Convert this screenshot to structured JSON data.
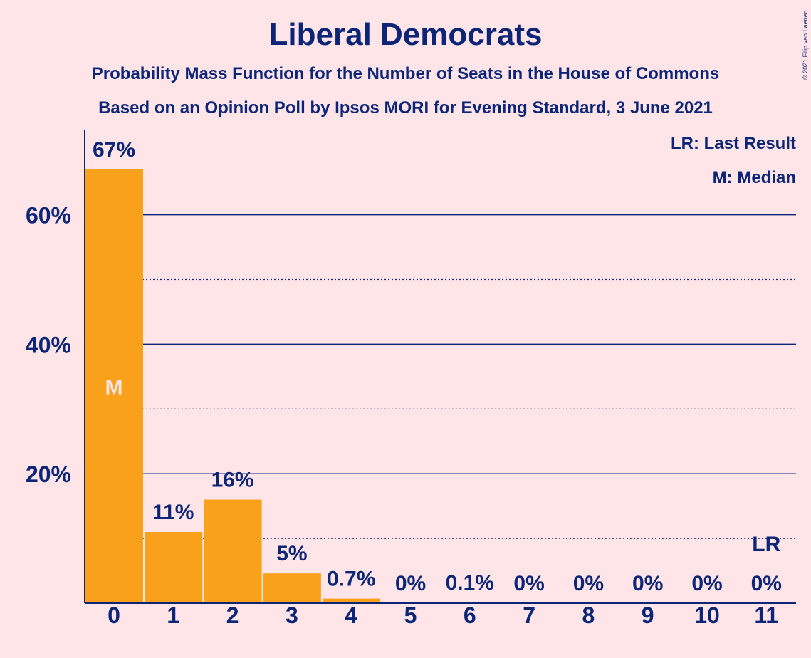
{
  "title": "Liberal Democrats",
  "subtitle_1": "Probability Mass Function for the Number of Seats in the House of Commons",
  "subtitle_2": "Based on an Opinion Poll by Ipsos MORI for Evening Standard, 3 June 2021",
  "copyright": "© 2021 Filip van Laenen",
  "legend": {
    "last_result": "LR: Last Result",
    "median": "M: Median"
  },
  "colors": {
    "background": "#FFE4E8",
    "bar": "#F9A11B",
    "text": "#0C2577"
  },
  "chart_data": {
    "type": "bar",
    "categories": [
      "0",
      "1",
      "2",
      "3",
      "4",
      "5",
      "6",
      "7",
      "8",
      "9",
      "10",
      "11"
    ],
    "values": [
      67,
      11,
      16,
      4.6,
      0.7,
      0,
      0.1,
      0,
      0,
      0,
      0,
      0
    ],
    "labels": [
      "67%",
      "11%",
      "16%",
      "5%",
      "0.7%",
      "0%",
      "0.1%",
      "0%",
      "0%",
      "0%",
      "0%",
      "0%"
    ],
    "y_ticks": [
      {
        "value": 20,
        "label": "20%"
      },
      {
        "value": 40,
        "label": "40%"
      },
      {
        "value": 60,
        "label": "60%"
      }
    ],
    "minor_gridlines": [
      10,
      30,
      50
    ],
    "ylim": [
      0,
      72
    ],
    "median_index": 0,
    "median_marker": "M",
    "last_result_index": 11,
    "last_result_marker": "LR",
    "legend_position": "top-right",
    "grid": true
  }
}
